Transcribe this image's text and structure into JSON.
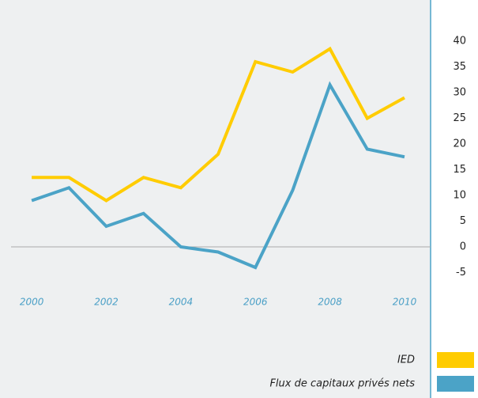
{
  "chart_data": {
    "type": "line",
    "x": [
      2000,
      2001,
      2002,
      2003,
      2004,
      2005,
      2006,
      2007,
      2008,
      2009,
      2010
    ],
    "series": [
      {
        "name": "IED",
        "color": "#ffcc00",
        "values": [
          13.5,
          13.5,
          9,
          13.5,
          11.5,
          18,
          36,
          34,
          38.5,
          25,
          29
        ]
      },
      {
        "name": "Flux de capitaux privés nets",
        "color": "#4ba3c7",
        "values": [
          9,
          11.5,
          4,
          6.5,
          0,
          -1,
          -4,
          11,
          31.5,
          19,
          17.5
        ]
      }
    ],
    "xlim": [
      1999.15,
      2010.7
    ],
    "xticks": [
      2000,
      2002,
      2004,
      2006,
      2008,
      2010
    ],
    "ylim": [
      -8,
      48
    ],
    "yticks": [
      -5,
      0,
      5,
      10,
      15,
      20,
      25,
      30,
      35,
      40
    ],
    "zero_line": true
  }
}
